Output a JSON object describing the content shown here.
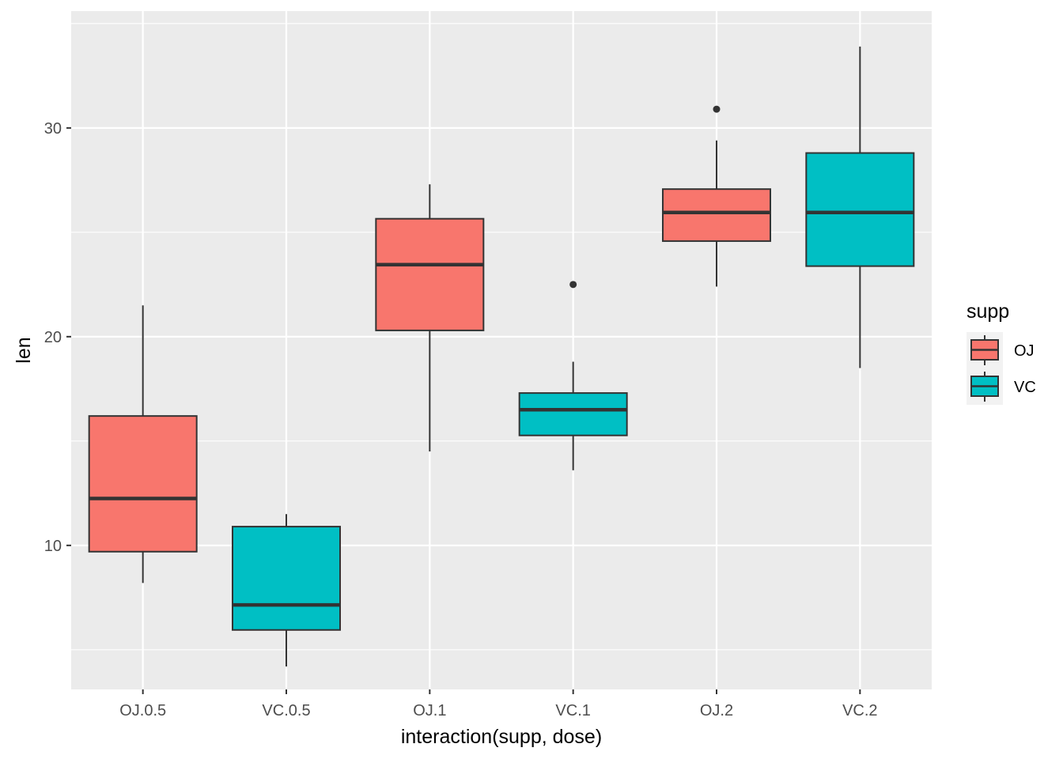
{
  "chart_data": {
    "type": "boxplot",
    "xlabel": "interaction(supp, dose)",
    "ylabel": "len",
    "ylim": [
      3.1,
      35.6
    ],
    "yticks": [
      10,
      20,
      30
    ],
    "grid": true,
    "legend": {
      "title": "supp",
      "placement": "right",
      "entries": [
        {
          "label": "OJ",
          "color": "#F8766D"
        },
        {
          "label": "VC",
          "color": "#00BFC4"
        }
      ]
    },
    "categories": [
      "OJ.0.5",
      "VC.0.5",
      "OJ.1",
      "VC.1",
      "OJ.2",
      "VC.2"
    ],
    "boxes": [
      {
        "category": "OJ.0.5",
        "supp": "OJ",
        "whisker_low": 8.2,
        "q1": 9.7,
        "median": 12.25,
        "q3": 16.2,
        "whisker_high": 21.5,
        "outliers": []
      },
      {
        "category": "VC.0.5",
        "supp": "VC",
        "whisker_low": 4.2,
        "q1": 5.95,
        "median": 7.15,
        "q3": 10.9,
        "whisker_high": 11.5,
        "outliers": []
      },
      {
        "category": "OJ.1",
        "supp": "OJ",
        "whisker_low": 14.5,
        "q1": 20.3,
        "median": 23.45,
        "q3": 25.65,
        "whisker_high": 27.3,
        "outliers": []
      },
      {
        "category": "VC.1",
        "supp": "VC",
        "whisker_low": 13.6,
        "q1": 15.27,
        "median": 16.5,
        "q3": 17.3,
        "whisker_high": 18.8,
        "outliers": [
          22.5
        ]
      },
      {
        "category": "OJ.2",
        "supp": "OJ",
        "whisker_low": 22.4,
        "q1": 24.58,
        "median": 25.95,
        "q3": 27.07,
        "whisker_high": 29.4,
        "outliers": [
          30.9
        ]
      },
      {
        "category": "VC.2",
        "supp": "VC",
        "whisker_low": 18.5,
        "q1": 23.38,
        "median": 25.95,
        "q3": 28.8,
        "whisker_high": 33.9,
        "outliers": []
      }
    ],
    "colors": {
      "panel": "#EBEBEB",
      "grid": "#FFFFFF",
      "box_outline": "#333333",
      "OJ": "#F8766D",
      "VC": "#00BFC4"
    }
  }
}
